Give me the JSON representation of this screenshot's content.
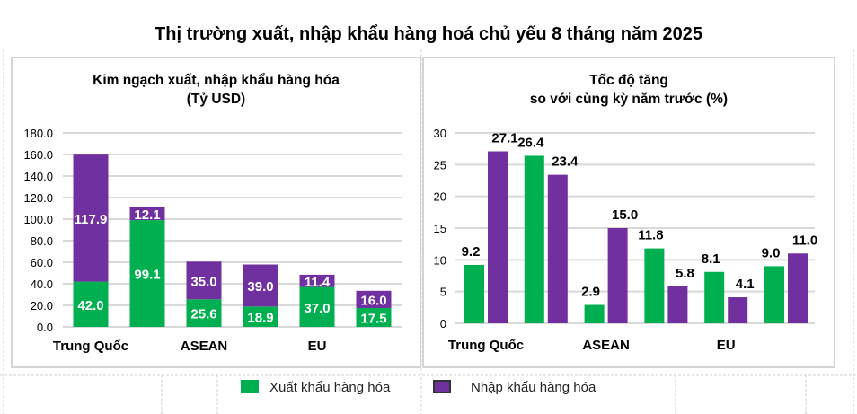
{
  "title": "Thị trường xuất, nhập khẩu hàng hoá chủ yếu 8 tháng năm 2025",
  "colors": {
    "export": "#00b050",
    "import": "#7030a0",
    "grid": "#d9d9d9"
  },
  "legend": [
    {
      "label": "Xuất khẩu hàng hóa",
      "color": "#00b050"
    },
    {
      "label": "Nhập khẩu hàng hóa",
      "color": "#7030a0"
    }
  ],
  "chart_data": [
    {
      "type": "bar",
      "stacked": true,
      "title_line1": "Kim ngạch xuất, nhập khẩu hàng hóa",
      "title_line2": "(Tỷ USD)",
      "categories": [
        "Trung Quốc",
        "",
        "ASEAN",
        "",
        "EU",
        ""
      ],
      "ylim": [
        0,
        180
      ],
      "yticks": [
        "0.0",
        "20.0",
        "40.0",
        "60.0",
        "80.0",
        "100.0",
        "120.0",
        "140.0",
        "160.0",
        "180.0"
      ],
      "series": [
        {
          "name": "Xuất khẩu hàng hóa",
          "values": [
            42.0,
            99.1,
            25.6,
            18.9,
            37.0,
            17.5
          ]
        },
        {
          "name": "Nhập khẩu hàng hóa",
          "values": [
            117.9,
            12.1,
            35.0,
            39.0,
            11.4,
            16.0
          ]
        }
      ],
      "grid": true,
      "legend": "bottom"
    },
    {
      "type": "bar",
      "stacked": false,
      "title_line1": "Tốc độ tăng",
      "title_line2": "so với cùng kỳ năm trước (%)",
      "categories": [
        "Trung Quốc",
        "",
        "ASEAN",
        "",
        "EU",
        ""
      ],
      "ylim": [
        0,
        30
      ],
      "yticks": [
        "0",
        "5",
        "10",
        "15",
        "20",
        "25",
        "30"
      ],
      "series": [
        {
          "name": "Xuất khẩu hàng hóa",
          "values": [
            9.2,
            26.4,
            2.9,
            11.8,
            8.1,
            9.0
          ]
        },
        {
          "name": "Nhập khẩu hàng hóa",
          "values": [
            27.1,
            23.4,
            15.0,
            5.8,
            4.1,
            11.0
          ]
        }
      ],
      "grid": true,
      "legend": "bottom"
    }
  ]
}
